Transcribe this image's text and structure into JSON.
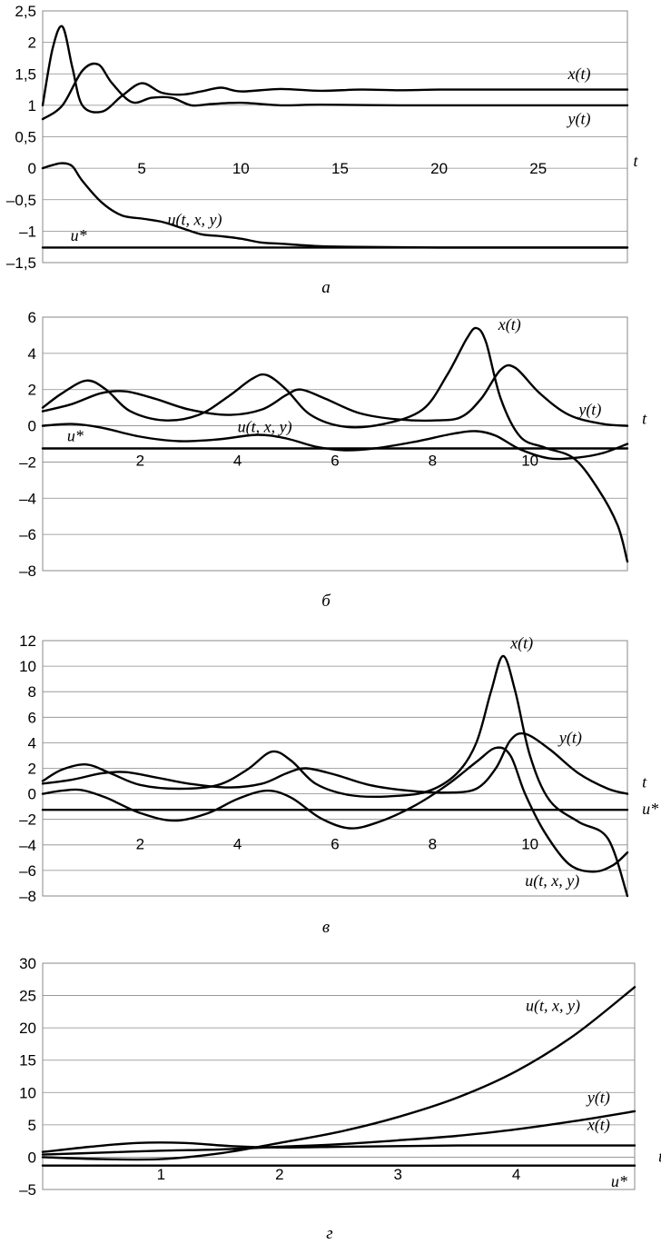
{
  "chart_data": [
    {
      "type": "line",
      "panel": "a",
      "caption": "а",
      "xlabel": "t",
      "xlim": [
        0,
        29.5
      ],
      "ylim": [
        -1.5,
        2.5
      ],
      "yticks": [
        2.5,
        2,
        1.5,
        1,
        0.5,
        0,
        -0.5,
        -1,
        -1.5
      ],
      "ytick_labels": [
        "2,5",
        "2",
        "1,5",
        "1",
        "0,5",
        "0",
        "–0,5",
        "–1",
        "–1,5"
      ],
      "xticks": [
        5,
        10,
        15,
        20,
        25
      ],
      "xtick_labels": [
        "5",
        "10",
        "15",
        "20",
        "25"
      ],
      "xtick_label_y": 0,
      "series": [
        {
          "name": "x(t)",
          "x": [
            0,
            0.5,
            1,
            1.5,
            2,
            3,
            4,
            5,
            6,
            7,
            8,
            9,
            10,
            12,
            14,
            16,
            18,
            20,
            22,
            25,
            29.5
          ],
          "y": [
            1.0,
            1.9,
            2.25,
            1.6,
            1.0,
            0.9,
            1.15,
            1.35,
            1.2,
            1.17,
            1.22,
            1.28,
            1.22,
            1.26,
            1.23,
            1.25,
            1.24,
            1.25,
            1.25,
            1.25,
            1.25
          ]
        },
        {
          "name": "y(t)",
          "x": [
            0,
            1,
            2,
            2.8,
            3.5,
            4.5,
            5.5,
            6.5,
            7.5,
            8.5,
            10,
            12,
            14,
            18,
            22,
            29.5
          ],
          "y": [
            0.78,
            1.0,
            1.55,
            1.65,
            1.35,
            1.05,
            1.12,
            1.12,
            1.0,
            1.02,
            1.04,
            1.0,
            1.01,
            1.0,
            1.0,
            1.0
          ]
        },
        {
          "name": "u(t, x, y)",
          "x": [
            0,
            0.5,
            1,
            1.5,
            2,
            3,
            4,
            5,
            6,
            7,
            8,
            9,
            10,
            11,
            12,
            14,
            16,
            20,
            25,
            29.5
          ],
          "y": [
            0.0,
            0.05,
            0.08,
            0.03,
            -0.2,
            -0.55,
            -0.75,
            -0.8,
            -0.85,
            -0.95,
            -1.05,
            -1.08,
            -1.12,
            -1.18,
            -1.2,
            -1.24,
            -1.25,
            -1.26,
            -1.26,
            -1.26
          ]
        },
        {
          "name": "u*",
          "x": [
            0,
            29.5
          ],
          "y": [
            -1.26,
            -1.26
          ]
        }
      ],
      "labels": [
        {
          "text": "x(t)",
          "x": 26.5,
          "y": 1.42
        },
        {
          "text": "y(t)",
          "x": 26.5,
          "y": 0.7
        },
        {
          "text": "u(t, x, y)",
          "x": 6.3,
          "y": -0.9
        },
        {
          "text": "u*",
          "x": 1.4,
          "y": -1.15
        },
        {
          "text": "t",
          "x": 29.8,
          "y": 0.03
        }
      ]
    },
    {
      "type": "line",
      "panel": "b",
      "caption": "б",
      "xlabel": "t",
      "xlim": [
        0,
        12
      ],
      "ylim": [
        -8,
        6
      ],
      "yticks": [
        6,
        4,
        2,
        0,
        -2,
        -4,
        -6,
        -8
      ],
      "ytick_labels": [
        "6",
        "4",
        "2",
        "0",
        "–2",
        "–4",
        "–6",
        "–8"
      ],
      "xticks": [
        2,
        4,
        6,
        8,
        10
      ],
      "xtick_labels": [
        "2",
        "4",
        "6",
        "8",
        "10"
      ],
      "xtick_label_y": -1.9,
      "series": [
        {
          "name": "x(t)",
          "x": [
            0,
            0.4,
            0.9,
            1.3,
            1.8,
            2.5,
            3.2,
            3.8,
            4.3,
            4.6,
            5.0,
            5.5,
            6.2,
            7.0,
            7.8,
            8.3,
            8.7,
            8.9,
            9.1,
            9.4,
            9.8,
            10.3,
            10.9,
            11.4,
            11.8,
            12
          ],
          "y": [
            1.0,
            1.8,
            2.5,
            2.0,
            0.8,
            0.3,
            0.6,
            1.6,
            2.6,
            2.8,
            2.0,
            0.6,
            -0.05,
            0.1,
            0.9,
            2.8,
            4.8,
            5.4,
            4.6,
            1.5,
            -0.6,
            -1.2,
            -1.8,
            -3.5,
            -5.5,
            -7.5
          ]
        },
        {
          "name": "y(t)",
          "x": [
            0,
            0.6,
            1.2,
            1.7,
            2.3,
            3.0,
            3.8,
            4.5,
            5.0,
            5.3,
            5.8,
            6.5,
            7.3,
            8.1,
            8.6,
            9.0,
            9.4,
            9.7,
            10.2,
            10.8,
            11.5,
            12
          ],
          "y": [
            0.8,
            1.2,
            1.8,
            1.9,
            1.5,
            0.9,
            0.6,
            0.9,
            1.7,
            2.0,
            1.5,
            0.7,
            0.35,
            0.3,
            0.5,
            1.5,
            3.1,
            3.2,
            1.8,
            0.6,
            0.1,
            0.0
          ]
        },
        {
          "name": "u(t, x, y)",
          "x": [
            0,
            0.6,
            1.2,
            2.0,
            2.8,
            3.6,
            4.4,
            5.0,
            5.6,
            6.2,
            6.8,
            7.6,
            8.4,
            8.9,
            9.3,
            9.8,
            10.4,
            11.0,
            11.5,
            12
          ],
          "y": [
            0.0,
            0.1,
            -0.1,
            -0.6,
            -0.85,
            -0.75,
            -0.5,
            -0.7,
            -1.15,
            -1.35,
            -1.25,
            -0.9,
            -0.45,
            -0.3,
            -0.55,
            -1.3,
            -1.8,
            -1.75,
            -1.5,
            -1.0
          ]
        },
        {
          "name": "u*",
          "x": [
            0,
            12
          ],
          "y": [
            -1.25,
            -1.25
          ]
        }
      ],
      "labels": [
        {
          "text": "x(t)",
          "x": 9.35,
          "y": 5.3
        },
        {
          "text": "y(t)",
          "x": 11.0,
          "y": 0.6
        },
        {
          "text": "u(t, x, y)",
          "x": 4.0,
          "y": -0.35
        },
        {
          "text": "u*",
          "x": 0.5,
          "y": -0.85
        },
        {
          "text": "t",
          "x": 12.3,
          "y": 0.1
        }
      ]
    },
    {
      "type": "line",
      "panel": "c",
      "caption": "в",
      "xlabel": "t",
      "xlim": [
        0,
        12
      ],
      "ylim": [
        -8,
        12
      ],
      "yticks": [
        12,
        10,
        8,
        6,
        4,
        2,
        0,
        -2,
        -4,
        -6,
        -8
      ],
      "ytick_labels": [
        "12",
        "10",
        "8",
        "6",
        "4",
        "2",
        "0",
        "–2",
        "–4",
        "–6",
        "–8"
      ],
      "xticks": [
        2,
        4,
        6,
        8,
        10
      ],
      "xtick_labels": [
        "2",
        "4",
        "6",
        "8",
        "10"
      ],
      "xtick_label_y": -3.9,
      "series": [
        {
          "name": "x(t)",
          "x": [
            0,
            0.4,
            0.9,
            1.4,
            2.0,
            2.8,
            3.6,
            4.2,
            4.7,
            5.1,
            5.6,
            6.3,
            7.1,
            7.9,
            8.5,
            8.9,
            9.2,
            9.45,
            9.7,
            10.0,
            10.4,
            11.0,
            11.6,
            12
          ],
          "y": [
            1.0,
            1.9,
            2.3,
            1.6,
            0.7,
            0.4,
            0.7,
            1.9,
            3.3,
            2.6,
            0.8,
            -0.1,
            -0.2,
            0.2,
            1.6,
            4.0,
            8.0,
            10.8,
            8.0,
            3.0,
            -0.5,
            -2.2,
            -3.5,
            -8.0
          ]
        },
        {
          "name": "y(t)",
          "x": [
            0,
            0.6,
            1.2,
            1.7,
            2.3,
            3.0,
            3.8,
            4.5,
            5.0,
            5.4,
            6.0,
            6.7,
            7.5,
            8.3,
            8.9,
            9.3,
            9.6,
            9.9,
            10.4,
            11.0,
            11.6,
            12
          ],
          "y": [
            0.8,
            1.1,
            1.6,
            1.7,
            1.3,
            0.8,
            0.5,
            0.8,
            1.6,
            2.0,
            1.5,
            0.7,
            0.25,
            0.1,
            0.4,
            2.0,
            4.2,
            4.7,
            3.5,
            1.6,
            0.4,
            0.0
          ]
        },
        {
          "name": "u(t, x, y)",
          "x": [
            0,
            0.4,
            0.8,
            1.3,
            2.0,
            2.7,
            3.4,
            4.0,
            4.6,
            5.1,
            5.7,
            6.3,
            6.9,
            7.6,
            8.3,
            8.9,
            9.3,
            9.6,
            9.9,
            10.3,
            10.8,
            11.3,
            11.7,
            12
          ],
          "y": [
            0.0,
            0.25,
            0.3,
            -0.3,
            -1.5,
            -2.1,
            -1.5,
            -0.4,
            0.25,
            -0.3,
            -1.9,
            -2.7,
            -2.2,
            -1.0,
            0.7,
            2.5,
            3.6,
            3.0,
            0.0,
            -3.0,
            -5.5,
            -6.1,
            -5.6,
            -4.6
          ]
        },
        {
          "name": "u*",
          "x": [
            0,
            12
          ],
          "y": [
            -1.25,
            -1.25
          ]
        }
      ],
      "labels": [
        {
          "text": "x(t)",
          "x": 9.6,
          "y": 11.4
        },
        {
          "text": "y(t)",
          "x": 10.6,
          "y": 4.0
        },
        {
          "text": "u(t, x, y)",
          "x": 9.9,
          "y": -7.2
        },
        {
          "text": "u*",
          "x": 12.3,
          "y": -1.6
        },
        {
          "text": "t",
          "x": 12.3,
          "y": 0.5
        }
      ]
    },
    {
      "type": "line",
      "panel": "d",
      "caption": "г",
      "xlabel": "t",
      "xlim": [
        0,
        5
      ],
      "ylim": [
        -5,
        30
      ],
      "yticks": [
        30,
        25,
        20,
        15,
        10,
        5,
        0,
        -5
      ],
      "ytick_labels": [
        "30",
        "25",
        "20",
        "15",
        "10",
        "5",
        "0",
        "–5"
      ],
      "xticks": [
        1,
        2,
        3,
        4
      ],
      "xtick_labels": [
        "1",
        "2",
        "3",
        "4"
      ],
      "xtick_label_y": -2.6,
      "series": [
        {
          "name": "u(t, x, y)",
          "x": [
            0,
            0.5,
            1.0,
            1.5,
            2.0,
            2.5,
            3.0,
            3.5,
            4.0,
            4.5,
            5.0
          ],
          "y": [
            0.0,
            -0.3,
            -0.3,
            0.6,
            2.2,
            3.9,
            6.2,
            9.2,
            13.3,
            19.0,
            26.3
          ]
        },
        {
          "name": "y(t)",
          "x": [
            0,
            0.5,
            1.0,
            1.5,
            2.0,
            2.5,
            3.0,
            3.5,
            4.0,
            4.5,
            5.0
          ],
          "y": [
            0.4,
            0.7,
            1.0,
            1.2,
            1.6,
            2.0,
            2.6,
            3.3,
            4.3,
            5.6,
            7.1
          ]
        },
        {
          "name": "x(t)",
          "x": [
            0,
            0.4,
            0.8,
            1.2,
            1.6,
            2.0,
            2.5,
            3.0,
            3.5,
            4.0,
            4.5,
            5.0
          ],
          "y": [
            0.8,
            1.6,
            2.2,
            2.2,
            1.7,
            1.5,
            1.6,
            1.7,
            1.8,
            1.8,
            1.8,
            1.8
          ]
        },
        {
          "name": "u*",
          "x": [
            0,
            5
          ],
          "y": [
            -1.3,
            -1.3
          ]
        }
      ],
      "labels": [
        {
          "text": "u(t, x, y)",
          "x": 4.08,
          "y": 22.6
        },
        {
          "text": "y(t)",
          "x": 4.6,
          "y": 8.4
        },
        {
          "text": "x(t)",
          "x": 4.6,
          "y": 4.2
        },
        {
          "text": "u*",
          "x": 4.8,
          "y": -4.6
        },
        {
          "text": "t",
          "x": 5.2,
          "y": -0.7
        }
      ]
    }
  ]
}
